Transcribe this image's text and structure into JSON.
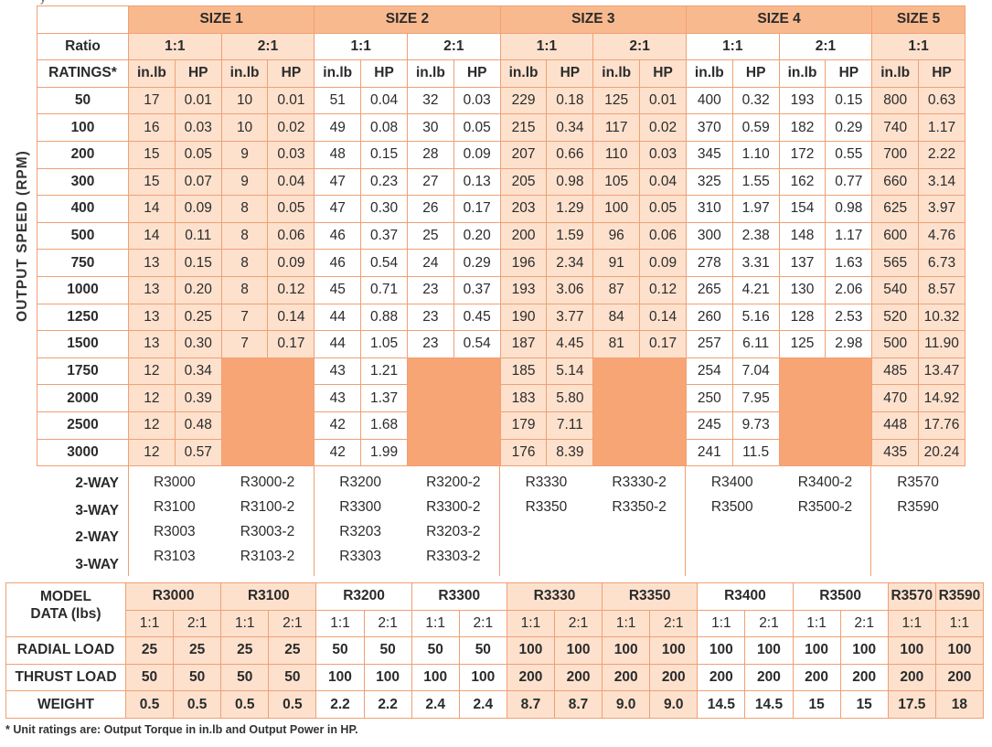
{
  "top_fragment": "y",
  "speed_axis_label": "OUTPUT SPEED (RPM)",
  "ratings_table": {
    "sizes": [
      "SIZE 1",
      "SIZE 2",
      "SIZE 3",
      "SIZE 4",
      "SIZE 5"
    ],
    "ratio_label": "Ratio",
    "ratios": [
      "1:1",
      "2:1",
      "1:1",
      "2:1",
      "1:1",
      "2:1",
      "1:1",
      "2:1",
      "1:1"
    ],
    "ratings_label": "RATINGS*",
    "unit_headers": [
      "in.lb",
      "HP",
      "in.lb",
      "HP",
      "in.lb",
      "HP",
      "in.lb",
      "HP",
      "in.lb",
      "HP",
      "in.lb",
      "HP",
      "in.lb",
      "HP",
      "in.lb",
      "HP",
      "in.lb",
      "HP"
    ],
    "rows": [
      {
        "rpm": "50",
        "values": [
          "17",
          "0.01",
          "10",
          "0.01",
          "51",
          "0.04",
          "32",
          "0.03",
          "229",
          "0.18",
          "125",
          "0.01",
          "400",
          "0.32",
          "193",
          "0.15",
          "800",
          "0.63"
        ]
      },
      {
        "rpm": "100",
        "values": [
          "16",
          "0.03",
          "10",
          "0.02",
          "49",
          "0.08",
          "30",
          "0.05",
          "215",
          "0.34",
          "117",
          "0.02",
          "370",
          "0.59",
          "182",
          "0.29",
          "740",
          "1.17"
        ]
      },
      {
        "rpm": "200",
        "values": [
          "15",
          "0.05",
          "9",
          "0.03",
          "48",
          "0.15",
          "28",
          "0.09",
          "207",
          "0.66",
          "110",
          "0.03",
          "345",
          "1.10",
          "172",
          "0.55",
          "700",
          "2.22"
        ]
      },
      {
        "rpm": "300",
        "values": [
          "15",
          "0.07",
          "9",
          "0.04",
          "47",
          "0.23",
          "27",
          "0.13",
          "205",
          "0.98",
          "105",
          "0.04",
          "325",
          "1.55",
          "162",
          "0.77",
          "660",
          "3.14"
        ]
      },
      {
        "rpm": "400",
        "values": [
          "14",
          "0.09",
          "8",
          "0.05",
          "47",
          "0.30",
          "26",
          "0.17",
          "203",
          "1.29",
          "100",
          "0.05",
          "310",
          "1.97",
          "154",
          "0.98",
          "625",
          "3.97"
        ]
      },
      {
        "rpm": "500",
        "values": [
          "14",
          "0.11",
          "8",
          "0.06",
          "46",
          "0.37",
          "25",
          "0.20",
          "200",
          "1.59",
          "96",
          "0.06",
          "300",
          "2.38",
          "148",
          "1.17",
          "600",
          "4.76"
        ]
      },
      {
        "rpm": "750",
        "values": [
          "13",
          "0.15",
          "8",
          "0.09",
          "46",
          "0.54",
          "24",
          "0.29",
          "196",
          "2.34",
          "91",
          "0.09",
          "278",
          "3.31",
          "137",
          "1.63",
          "565",
          "6.73"
        ]
      },
      {
        "rpm": "1000",
        "values": [
          "13",
          "0.20",
          "8",
          "0.12",
          "45",
          "0.71",
          "23",
          "0.37",
          "193",
          "3.06",
          "87",
          "0.12",
          "265",
          "4.21",
          "130",
          "2.06",
          "540",
          "8.57"
        ]
      },
      {
        "rpm": "1250",
        "values": [
          "13",
          "0.25",
          "7",
          "0.14",
          "44",
          "0.88",
          "23",
          "0.45",
          "190",
          "3.77",
          "84",
          "0.14",
          "260",
          "5.16",
          "128",
          "2.53",
          "520",
          "10.32"
        ]
      },
      {
        "rpm": "1500",
        "values": [
          "13",
          "0.30",
          "7",
          "0.17",
          "44",
          "1.05",
          "23",
          "0.54",
          "187",
          "4.45",
          "81",
          "0.17",
          "257",
          "6.11",
          "125",
          "2.98",
          "500",
          "11.90"
        ]
      },
      {
        "rpm": "1750",
        "values": [
          "12",
          "0.34",
          "",
          "",
          "43",
          "1.21",
          "",
          "",
          "185",
          "5.14",
          "",
          "",
          "254",
          "7.04",
          "",
          "",
          "485",
          "13.47"
        ]
      },
      {
        "rpm": "2000",
        "values": [
          "12",
          "0.39",
          "",
          "",
          "43",
          "1.37",
          "",
          "",
          "183",
          "5.80",
          "",
          "",
          "250",
          "7.95",
          "",
          "",
          "470",
          "14.92"
        ]
      },
      {
        "rpm": "2500",
        "values": [
          "12",
          "0.48",
          "",
          "",
          "42",
          "1.68",
          "",
          "",
          "179",
          "7.11",
          "",
          "",
          "245",
          "9.73",
          "",
          "",
          "448",
          "17.76"
        ]
      },
      {
        "rpm": "3000",
        "values": [
          "12",
          "0.57",
          "",
          "",
          "42",
          "1.99",
          "",
          "",
          "176",
          "8.39",
          "",
          "",
          "241",
          "11.5",
          "",
          "",
          "435",
          "20.24"
        ]
      }
    ]
  },
  "model_table": {
    "way_labels": [
      "2-WAY",
      "3-WAY",
      "2-WAY",
      "3-WAY"
    ],
    "columns": [
      [
        "R3000",
        "R3100",
        "R3003",
        "R3103"
      ],
      [
        "R3000-2",
        "R3100-2",
        "R3003-2",
        "R3103-2"
      ],
      [
        "R3200",
        "R3300",
        "R3203",
        "R3303"
      ],
      [
        "R3200-2",
        "R3300-2",
        "R3203-2",
        "R3303-2"
      ],
      [
        "R3330",
        "R3350"
      ],
      [
        "R3330-2",
        "R3350-2"
      ],
      [
        "R3400",
        "R3500"
      ],
      [
        "R3400-2",
        "R3500-2"
      ],
      [
        "R3570",
        "R3590"
      ]
    ]
  },
  "data_table": {
    "header_line1": "MODEL",
    "header_line2": "DATA (lbs)",
    "models": [
      "R3000",
      "R3100",
      "R3200",
      "R3300",
      "R3330",
      "R3350",
      "R3400",
      "R3500",
      "R3570",
      "R3590"
    ],
    "ratios": [
      "1:1",
      "2:1",
      "1:1",
      "2:1",
      "1:1",
      "2:1",
      "1:1",
      "2:1",
      "1:1",
      "2:1",
      "1:1",
      "2:1",
      "1:1",
      "2:1",
      "1:1",
      "2:1",
      "1:1",
      "1:1"
    ],
    "rows": [
      {
        "label": "RADIAL LOAD",
        "values": [
          "25",
          "25",
          "25",
          "25",
          "50",
          "50",
          "50",
          "50",
          "100",
          "100",
          "100",
          "100",
          "100",
          "100",
          "100",
          "100",
          "100",
          "100"
        ]
      },
      {
        "label": "THRUST LOAD",
        "values": [
          "50",
          "50",
          "50",
          "50",
          "100",
          "100",
          "100",
          "100",
          "200",
          "200",
          "200",
          "200",
          "200",
          "200",
          "200",
          "200",
          "200",
          "200"
        ]
      },
      {
        "label": "WEIGHT",
        "values": [
          "0.5",
          "0.5",
          "0.5",
          "0.5",
          "2.2",
          "2.2",
          "2.4",
          "2.4",
          "8.7",
          "8.7",
          "9.0",
          "9.0",
          "14.5",
          "14.5",
          "15",
          "15",
          "17.5",
          "18"
        ]
      }
    ]
  },
  "footnote": "* Unit ratings are: Output Torque in in.lb and Output Power in HP.",
  "colors": {
    "light": "#fde1cd",
    "pink": "#f9b98f",
    "orange": "#f7a574",
    "line": "#f0a074"
  }
}
